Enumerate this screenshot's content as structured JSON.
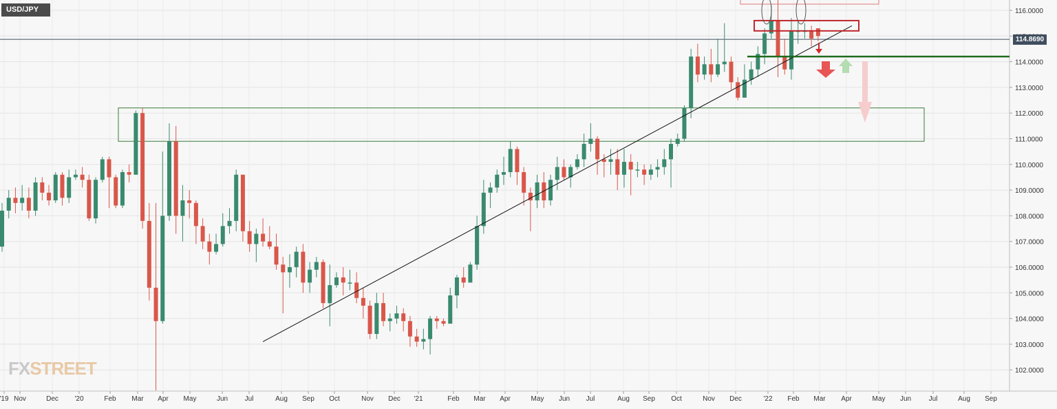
{
  "header": {
    "symbol": "USD/JPY"
  },
  "current_price": "114.8690",
  "logo": {
    "part1": "FX",
    "part2": "STREET"
  },
  "colors": {
    "up": "#3a8a6e",
    "down": "#d9574a",
    "support": "#1f6b1f",
    "zone": "#3b7a3b",
    "resistance": "#c0272d"
  },
  "chart_data": {
    "type": "candlestick",
    "timeframe": "weekly",
    "ylim": [
      101.3,
      116.4
    ],
    "y_ticks": [
      "116.0000",
      "115.0000",
      "114.0000",
      "113.0000",
      "112.0000",
      "111.0000",
      "110.0000",
      "109.0000",
      "108.0000",
      "107.0000",
      "106.0000",
      "105.0000",
      "104.0000",
      "103.0000",
      "102.0000"
    ],
    "x_ticks": [
      "'19",
      "Nov",
      "Dec",
      "'20",
      "Feb",
      "Mar",
      "Apr",
      "May",
      "Jun",
      "Jul",
      "Aug",
      "Sep",
      "Oct",
      "Nov",
      "Dec",
      "'21",
      "Feb",
      "Mar",
      "Apr",
      "May",
      "Jun",
      "Jul",
      "Aug",
      "Sep",
      "Oct",
      "Nov",
      "Dec",
      "'22",
      "Feb",
      "Mar",
      "Apr",
      "May",
      "Jun",
      "Jul",
      "Aug",
      "Sep"
    ],
    "candles": [
      [
        106.8,
        108.2,
        108.5,
        106.6
      ],
      [
        108.2,
        108.7,
        109.0,
        107.9
      ],
      [
        108.7,
        108.5,
        109.1,
        108.1
      ],
      [
        108.5,
        108.7,
        109.2,
        108.2
      ],
      [
        108.7,
        108.2,
        109.1,
        107.9
      ],
      [
        108.2,
        109.3,
        109.5,
        108.0
      ],
      [
        109.3,
        108.9,
        109.5,
        108.6
      ],
      [
        108.9,
        108.6,
        109.2,
        108.4
      ],
      [
        108.6,
        109.6,
        109.7,
        108.5
      ],
      [
        109.6,
        108.7,
        109.7,
        108.4
      ],
      [
        108.7,
        109.5,
        109.8,
        108.5
      ],
      [
        109.5,
        109.6,
        109.8,
        109.4
      ],
      [
        109.6,
        109.4,
        109.9,
        109.1
      ],
      [
        109.4,
        107.9,
        109.6,
        107.8
      ],
      [
        107.9,
        109.4,
        109.5,
        107.7
      ],
      [
        109.4,
        110.2,
        110.3,
        109.3
      ],
      [
        110.2,
        109.5,
        110.3,
        108.3
      ],
      [
        109.5,
        108.4,
        109.6,
        108.3
      ],
      [
        108.4,
        109.7,
        109.8,
        108.3
      ],
      [
        109.7,
        109.6,
        110.0,
        109.3
      ],
      [
        109.6,
        112.0,
        112.1,
        109.6
      ],
      [
        112.0,
        107.8,
        112.2,
        107.5
      ],
      [
        107.8,
        105.2,
        108.5,
        104.7
      ],
      [
        105.2,
        103.9,
        108.5,
        101.2
      ],
      [
        103.9,
        108.0,
        110.5,
        103.8
      ],
      [
        108.0,
        110.9,
        111.6,
        107.8
      ],
      [
        110.9,
        108.0,
        111.5,
        107.3
      ],
      [
        108.0,
        108.6,
        109.2,
        107.0
      ],
      [
        108.6,
        108.5,
        109.0,
        107.9
      ],
      [
        108.5,
        107.6,
        108.6,
        106.9
      ],
      [
        107.6,
        107.0,
        107.9,
        106.7
      ],
      [
        107.0,
        106.6,
        107.3,
        106.1
      ],
      [
        106.6,
        106.9,
        107.3,
        106.5
      ],
      [
        106.9,
        107.6,
        108.1,
        106.8
      ],
      [
        107.6,
        107.8,
        108.3,
        107.3
      ],
      [
        107.8,
        109.6,
        109.8,
        107.4
      ],
      [
        109.6,
        107.4,
        109.6,
        107.0
      ],
      [
        107.4,
        106.9,
        107.8,
        106.6
      ],
      [
        106.9,
        107.3,
        107.5,
        106.2
      ],
      [
        107.3,
        107.0,
        107.9,
        106.8
      ],
      [
        107.0,
        106.8,
        107.6,
        106.7
      ],
      [
        106.8,
        106.1,
        107.3,
        105.9
      ],
      [
        106.1,
        105.8,
        106.4,
        104.2
      ],
      [
        105.8,
        106.0,
        106.5,
        105.2
      ],
      [
        106.0,
        106.6,
        106.8,
        105.6
      ],
      [
        106.6,
        105.4,
        106.9,
        105.0
      ],
      [
        105.4,
        105.9,
        106.2,
        105.0
      ],
      [
        105.9,
        106.2,
        106.4,
        105.6
      ],
      [
        106.2,
        104.6,
        106.3,
        104.4
      ],
      [
        104.6,
        105.3,
        106.1,
        103.7
      ],
      [
        105.3,
        105.6,
        105.8,
        105.2
      ],
      [
        105.6,
        105.4,
        106.0,
        104.9
      ],
      [
        105.4,
        105.4,
        105.9,
        105.1
      ],
      [
        105.4,
        104.8,
        105.8,
        104.6
      ],
      [
        104.8,
        104.5,
        105.2,
        104.0
      ],
      [
        104.5,
        103.4,
        104.7,
        103.2
      ],
      [
        103.4,
        104.6,
        105.0,
        103.2
      ],
      [
        104.6,
        103.9,
        105.0,
        103.7
      ],
      [
        103.9,
        104.0,
        104.2,
        103.5
      ],
      [
        104.0,
        104.2,
        104.5,
        103.8
      ],
      [
        104.2,
        103.9,
        104.4,
        103.5
      ],
      [
        103.9,
        103.3,
        104.1,
        102.9
      ],
      [
        103.3,
        103.1,
        103.6,
        102.9
      ],
      [
        103.1,
        103.2,
        103.6,
        102.8
      ],
      [
        103.2,
        104.0,
        104.1,
        102.6
      ],
      [
        104.0,
        103.9,
        104.1,
        103.6
      ],
      [
        103.9,
        103.8,
        104.0,
        103.7
      ],
      [
        103.8,
        104.9,
        105.2,
        103.8
      ],
      [
        104.9,
        105.6,
        105.7,
        104.4
      ],
      [
        105.6,
        105.4,
        106.0,
        105.2
      ],
      [
        105.4,
        106.1,
        106.2,
        105.4
      ],
      [
        106.1,
        107.6,
        108.0,
        105.9
      ],
      [
        107.6,
        108.9,
        109.4,
        107.3
      ],
      [
        108.9,
        109.1,
        109.3,
        108.3
      ],
      [
        109.1,
        109.6,
        109.8,
        108.9
      ],
      [
        109.6,
        109.7,
        110.3,
        109.2
      ],
      [
        109.7,
        110.6,
        110.9,
        109.5
      ],
      [
        110.6,
        109.7,
        110.7,
        109.2
      ],
      [
        109.7,
        108.9,
        109.9,
        108.4
      ],
      [
        108.9,
        108.6,
        109.1,
        107.4
      ],
      [
        108.6,
        109.3,
        109.6,
        108.3
      ],
      [
        109.3,
        108.6,
        109.7,
        108.3
      ],
      [
        108.6,
        109.4,
        109.6,
        108.4
      ],
      [
        109.4,
        109.9,
        110.3,
        109.0
      ],
      [
        109.9,
        109.5,
        110.2,
        109.4
      ],
      [
        109.5,
        109.9,
        110.0,
        109.1
      ],
      [
        109.9,
        110.2,
        110.4,
        109.8
      ],
      [
        110.2,
        110.8,
        111.2,
        109.9
      ],
      [
        110.8,
        111.0,
        111.6,
        110.5
      ],
      [
        111.0,
        110.2,
        111.1,
        109.6
      ],
      [
        110.2,
        110.1,
        110.4,
        109.5
      ],
      [
        110.1,
        110.2,
        110.6,
        109.6
      ],
      [
        110.2,
        109.6,
        110.6,
        109.0
      ],
      [
        109.6,
        110.1,
        110.6,
        109.1
      ],
      [
        110.1,
        109.8,
        110.4,
        108.8
      ],
      [
        109.8,
        109.8,
        110.1,
        109.5
      ],
      [
        109.8,
        109.6,
        110.0,
        109.2
      ],
      [
        109.6,
        109.8,
        110.0,
        109.4
      ],
      [
        109.8,
        109.9,
        110.2,
        109.5
      ],
      [
        109.9,
        110.2,
        110.6,
        109.6
      ],
      [
        110.2,
        110.8,
        111.0,
        109.1
      ],
      [
        110.8,
        111.0,
        111.2,
        110.7
      ],
      [
        111.0,
        112.2,
        112.3,
        110.9
      ],
      [
        112.2,
        114.2,
        114.5,
        111.8
      ],
      [
        114.2,
        113.5,
        114.7,
        113.2
      ],
      [
        113.5,
        113.9,
        114.2,
        113.3
      ],
      [
        113.9,
        113.5,
        114.5,
        113.2
      ],
      [
        113.5,
        113.9,
        114.9,
        113.4
      ],
      [
        113.9,
        114.0,
        115.5,
        113.6
      ],
      [
        114.0,
        113.2,
        114.2,
        112.9
      ],
      [
        113.2,
        112.6,
        113.4,
        112.5
      ],
      [
        112.6,
        113.3,
        113.9,
        112.6
      ],
      [
        113.3,
        113.7,
        114.0,
        113.1
      ],
      [
        113.7,
        114.3,
        114.6,
        113.4
      ],
      [
        114.3,
        115.1,
        115.3,
        113.9
      ],
      [
        115.1,
        115.6,
        116.2,
        114.9
      ],
      [
        115.6,
        114.2,
        116.4,
        113.4
      ],
      [
        114.2,
        113.7,
        114.9,
        113.5
      ],
      [
        113.7,
        115.2,
        115.7,
        113.3
      ],
      [
        115.2,
        115.2,
        115.6,
        114.7
      ],
      [
        115.2,
        115.2,
        115.5,
        114.9
      ],
      [
        115.2,
        114.9,
        115.4,
        114.6
      ],
      [
        115.3,
        115.0,
        115.2,
        114.8
      ]
    ],
    "support_level": 114.2,
    "trendline_from": [
      39,
      103.1
    ],
    "zone": {
      "y_low": 110.9,
      "y_high": 112.2
    },
    "resistance_box": {
      "y_low": 115.2,
      "y_high": 115.6
    }
  }
}
